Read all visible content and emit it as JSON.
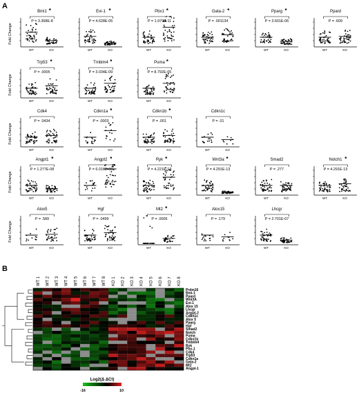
{
  "panel_a": {
    "label": "A",
    "y_label": "Fold Change",
    "panels": [
      {
        "gene": "Bmi1",
        "star": true,
        "p": "P = 3.368E-8",
        "chart_data": {
          "type": "scatter",
          "title": "Bmi1",
          "xlabel": "",
          "ylabel": "Fold Change",
          "categories": [
            "WT",
            "KO"
          ],
          "mean": [
            1.6,
            0.6
          ],
          "n": [
            40,
            40
          ]
        }
      },
      {
        "gene": "Evi-1",
        "star": true,
        "p": "P = 4.628E-05",
        "chart_data": {
          "type": "scatter",
          "title": "Evi-1",
          "xlabel": "",
          "ylabel": "",
          "categories": [
            "WT",
            "KO"
          ],
          "mean": [
            1.1,
            0.3
          ],
          "n": [
            40,
            40
          ]
        }
      },
      {
        "gene": "Pbx1",
        "star": true,
        "p": "P = 1.979E-11",
        "chart_data": {
          "type": "scatter",
          "title": "Pbx1",
          "xlabel": "",
          "ylabel": "",
          "categories": [
            "WT",
            "KO"
          ],
          "mean": [
            1.0,
            2.2
          ],
          "n": [
            40,
            40
          ]
        }
      },
      {
        "gene": "Gata-2",
        "star": true,
        "p": "P = .001134",
        "chart_data": {
          "type": "scatter",
          "title": "Gata-2",
          "xlabel": "",
          "ylabel": "",
          "categories": [
            "WT",
            "KO"
          ],
          "mean": [
            1.0,
            1.3
          ],
          "n": [
            40,
            40
          ]
        }
      },
      {
        "gene": "Pparg",
        "star": true,
        "p": "P = 3.601E-06",
        "chart_data": {
          "type": "scatter",
          "title": "Pparg",
          "xlabel": "",
          "ylabel": "",
          "categories": [
            "WT",
            "KO"
          ],
          "mean": [
            1.0,
            0.5
          ],
          "n": [
            40,
            40
          ]
        }
      },
      {
        "gene": "Ppard",
        "star": false,
        "p": "P = .609",
        "chart_data": {
          "type": "scatter",
          "title": "Ppard",
          "xlabel": "",
          "ylabel": "",
          "categories": [
            "WT",
            "KO"
          ],
          "mean": [
            1.0,
            1.1
          ],
          "n": [
            40,
            40
          ]
        }
      },
      {
        "gene": "Trp53",
        "star": true,
        "p": "P = .0005",
        "chart_data": {
          "type": "scatter",
          "title": "Trp53",
          "xlabel": "",
          "ylabel": "Fold Change",
          "categories": [
            "WT",
            "KO"
          ],
          "mean": [
            1.0,
            1.3
          ],
          "n": [
            40,
            40
          ]
        }
      },
      {
        "gene": "Tmbim4",
        "star": true,
        "p": "P = 3.034E-09",
        "chart_data": {
          "type": "scatter",
          "title": "Tmbim4",
          "xlabel": "",
          "ylabel": "",
          "categories": [
            "WT",
            "KO"
          ],
          "mean": [
            1.0,
            1.6
          ],
          "n": [
            40,
            40
          ]
        }
      },
      {
        "gene": "Puma",
        "star": true,
        "p": "P = 8.792E-05",
        "chart_data": {
          "type": "scatter",
          "title": "Puma",
          "xlabel": "",
          "ylabel": "",
          "categories": [
            "WT",
            "KO"
          ],
          "mean": [
            1.0,
            1.6
          ],
          "n": [
            40,
            40
          ]
        }
      },
      {
        "gene": "Cdk4",
        "star": false,
        "p": "P = .0434",
        "chart_data": {
          "type": "scatter",
          "title": "Cdk4",
          "xlabel": "",
          "ylabel": "Fold Change",
          "categories": [
            "WT",
            "KO"
          ],
          "mean": [
            1.0,
            1.2
          ],
          "n": [
            40,
            40
          ]
        }
      },
      {
        "gene": "Cdkn1a",
        "star": true,
        "p": "P = .0003",
        "chart_data": {
          "type": "scatter",
          "title": "Cdkn1a",
          "xlabel": "",
          "ylabel": "",
          "categories": [
            "WT",
            "KO"
          ],
          "mean": [
            1.0,
            1.8
          ],
          "n": [
            16,
            16
          ]
        }
      },
      {
        "gene": "Cdkn1b",
        "star": true,
        "p": "P = .001",
        "chart_data": {
          "type": "scatter",
          "title": "Cdkn1b",
          "xlabel": "",
          "ylabel": "",
          "categories": [
            "WT",
            "KO"
          ],
          "mean": [
            1.0,
            1.2
          ],
          "n": [
            40,
            40
          ]
        }
      },
      {
        "gene": "Cdkn1c",
        "star": false,
        "p": "P = .01",
        "chart_data": {
          "type": "scatter",
          "title": "Cdkn1c",
          "xlabel": "",
          "ylabel": "",
          "categories": [
            "WT",
            "KO"
          ],
          "mean": [
            1.0,
            0.7
          ],
          "n": [
            16,
            8
          ]
        }
      },
      {
        "gene": "Angpt1",
        "star": true,
        "p": "P = 1.277E-08",
        "chart_data": {
          "type": "scatter",
          "title": "Angpt1",
          "xlabel": "",
          "ylabel": "Fold Change",
          "categories": [
            "WT",
            "KO"
          ],
          "mean": [
            1.0,
            0.6
          ],
          "n": [
            40,
            40
          ]
        }
      },
      {
        "gene": "Angpt2",
        "star": true,
        "p": "P = 6.016E-08",
        "chart_data": {
          "type": "scatter",
          "title": "Angpt2",
          "xlabel": "",
          "ylabel": "",
          "categories": [
            "WT",
            "KO"
          ],
          "mean": [
            1.0,
            3.0
          ],
          "n": [
            16,
            40
          ]
        }
      },
      {
        "gene": "Ryk",
        "star": true,
        "p": "P = 4.221E-13",
        "chart_data": {
          "type": "scatter",
          "title": "Ryk",
          "xlabel": "",
          "ylabel": "",
          "categories": [
            "WT",
            "KO"
          ],
          "mean": [
            1.0,
            2.0
          ],
          "n": [
            40,
            40
          ]
        }
      },
      {
        "gene": "Wnt3a",
        "star": true,
        "p": "P = 4.291E-13",
        "chart_data": {
          "type": "scatter",
          "title": "Wnt3a",
          "xlabel": "",
          "ylabel": "",
          "categories": [
            "WT",
            "KO"
          ],
          "mean": [
            1.0,
            0.2
          ],
          "n": [
            40,
            40
          ]
        }
      },
      {
        "gene": "Smad2",
        "star": false,
        "p": "P = .277",
        "chart_data": {
          "type": "scatter",
          "title": "Smad2",
          "xlabel": "",
          "ylabel": "",
          "categories": [
            "WT",
            "KO"
          ],
          "mean": [
            1.0,
            1.0
          ],
          "n": [
            40,
            40
          ]
        }
      },
      {
        "gene": "Notch1",
        "star": true,
        "p": "P = 4.291E-13",
        "chart_data": {
          "type": "scatter",
          "title": "Notch1",
          "xlabel": "",
          "ylabel": "",
          "categories": [
            "WT",
            "KO"
          ],
          "mean": [
            1.0,
            1.2
          ],
          "n": [
            40,
            40
          ]
        }
      },
      {
        "gene": "Alox5",
        "star": false,
        "p": "P = .589",
        "chart_data": {
          "type": "scatter",
          "title": "Alox5",
          "xlabel": "",
          "ylabel": "Fold Change",
          "categories": [
            "WT",
            "KO"
          ],
          "mean": [
            1.0,
            1.1
          ],
          "n": [
            12,
            30
          ]
        }
      },
      {
        "gene": "Hgf",
        "star": false,
        "p": "P = .0499",
        "chart_data": {
          "type": "scatter",
          "title": "Hgf",
          "xlabel": "",
          "ylabel": "",
          "categories": [
            "WT",
            "KO"
          ],
          "mean": [
            1.0,
            1.3
          ],
          "n": [
            40,
            40
          ]
        }
      },
      {
        "gene": "Mt2",
        "star": true,
        "p": "P = .0006",
        "chart_data": {
          "type": "scatter",
          "title": "Mt2",
          "xlabel": "",
          "ylabel": "",
          "categories": [
            "WT",
            "KO"
          ],
          "mean": [
            0.0,
            0.6
          ],
          "n": [
            30,
            30
          ]
        }
      },
      {
        "gene": "Alox15",
        "star": false,
        "p": "P = .179",
        "chart_data": {
          "type": "scatter",
          "title": "Alox15",
          "xlabel": "",
          "ylabel": "",
          "categories": [
            "WT",
            "KO"
          ],
          "mean": [
            1.0,
            0.8
          ],
          "n": [
            14,
            10
          ]
        }
      },
      {
        "gene": "Lhcgr",
        "star": false,
        "p": "P = 2.701E-07",
        "chart_data": {
          "type": "scatter",
          "title": "Lhcgr",
          "xlabel": "",
          "ylabel": "",
          "categories": [
            "WT",
            "KO"
          ],
          "mean": [
            1.0,
            0.4
          ],
          "n": [
            40,
            40
          ]
        }
      }
    ]
  },
  "panel_b": {
    "label": "B",
    "chart_data": {
      "type": "heatmap",
      "columns": [
        "WT 1",
        "WT 2",
        "WT 3",
        "WT 4",
        "WT 5",
        "WT 6",
        "WT 7",
        "WT 8",
        "KO 1",
        "KO 2",
        "KO 3",
        "KO 4",
        "KO 5",
        "KO 6",
        "KO 7",
        "KO 8"
      ],
      "rows": [
        "Prdm16",
        "Bmi-1",
        "Ppard",
        "Wnt3A",
        "Evi-1",
        "Alox 15",
        "Lhcgr",
        "Angpt-2",
        "Cdkn1c",
        "Alox 5",
        "Pparg",
        "Hgf",
        "Smad2",
        "Notch",
        "Puma",
        "Cdkn1b",
        "Tmbim4",
        "Ryk",
        "Pbx-1",
        "Cdk4",
        "Trp53",
        "Cdkn1a",
        "Gata-2",
        "Mt2",
        "Angpt-1"
      ],
      "legend_title": "Log2(Δ ΔCt)",
      "legend_min": "-16",
      "legend_max": "10",
      "scale_colors": [
        "#19c219",
        "#000000",
        "#e02020"
      ],
      "missing_color": "#8c8c8c"
    }
  }
}
